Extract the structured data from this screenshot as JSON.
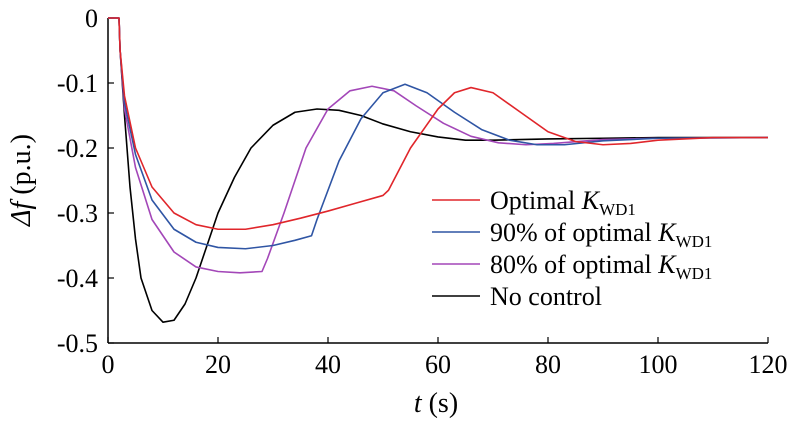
{
  "chart_data": {
    "type": "line",
    "title": "",
    "xlabel": {
      "symbol": "t",
      "unit": " (s)"
    },
    "ylabel": {
      "symbol": "Δf",
      "unit": " (p.u.)"
    },
    "xlim": [
      0,
      120
    ],
    "ylim": [
      -0.5,
      0
    ],
    "xticks": [
      0,
      20,
      40,
      60,
      80,
      100,
      120
    ],
    "xtick_labels": [
      "0",
      "20",
      "40",
      "60",
      "80",
      "100",
      "120"
    ],
    "yticks": [
      0,
      -0.1,
      -0.2,
      -0.3,
      -0.4,
      -0.5
    ],
    "ytick_labels": [
      "0",
      "-0.1",
      "-0.2",
      "-0.3",
      "-0.4",
      "-0.5"
    ],
    "grid": false,
    "legend_position": "right",
    "series": [
      {
        "name": "Optimal K_WD1",
        "legend": {
          "prefix": "Optimal ",
          "k": "K",
          "sub": "WD1"
        },
        "color": "#e0262b",
        "points": [
          [
            0,
            0
          ],
          [
            2,
            0
          ],
          [
            2.2,
            -0.05
          ],
          [
            3,
            -0.12
          ],
          [
            5,
            -0.2
          ],
          [
            8,
            -0.26
          ],
          [
            12,
            -0.3
          ],
          [
            16,
            -0.318
          ],
          [
            20,
            -0.325
          ],
          [
            25,
            -0.325
          ],
          [
            30,
            -0.318
          ],
          [
            35,
            -0.308
          ],
          [
            40,
            -0.297
          ],
          [
            45,
            -0.285
          ],
          [
            50,
            -0.273
          ],
          [
            51,
            -0.265
          ],
          [
            55,
            -0.2
          ],
          [
            60,
            -0.14
          ],
          [
            63,
            -0.115
          ],
          [
            66,
            -0.107
          ],
          [
            70,
            -0.115
          ],
          [
            75,
            -0.145
          ],
          [
            80,
            -0.175
          ],
          [
            85,
            -0.19
          ],
          [
            90,
            -0.195
          ],
          [
            95,
            -0.193
          ],
          [
            100,
            -0.188
          ],
          [
            110,
            -0.184
          ],
          [
            120,
            -0.184
          ]
        ]
      },
      {
        "name": "90% of optimal K_WD1",
        "legend": {
          "prefix": "90% of optimal ",
          "k": "K",
          "sub": "WD1"
        },
        "color": "#2f55a4",
        "points": [
          [
            0,
            0
          ],
          [
            2,
            0
          ],
          [
            2.2,
            -0.05
          ],
          [
            3,
            -0.13
          ],
          [
            5,
            -0.21
          ],
          [
            8,
            -0.28
          ],
          [
            12,
            -0.325
          ],
          [
            16,
            -0.345
          ],
          [
            20,
            -0.353
          ],
          [
            25,
            -0.355
          ],
          [
            30,
            -0.35
          ],
          [
            34,
            -0.342
          ],
          [
            37,
            -0.335
          ],
          [
            38,
            -0.31
          ],
          [
            42,
            -0.22
          ],
          [
            46,
            -0.155
          ],
          [
            50,
            -0.115
          ],
          [
            54,
            -0.102
          ],
          [
            58,
            -0.115
          ],
          [
            63,
            -0.145
          ],
          [
            68,
            -0.172
          ],
          [
            73,
            -0.188
          ],
          [
            78,
            -0.195
          ],
          [
            83,
            -0.195
          ],
          [
            90,
            -0.189
          ],
          [
            100,
            -0.185
          ],
          [
            120,
            -0.184
          ]
        ]
      },
      {
        "name": "80% of optimal K_WD1",
        "legend": {
          "prefix": "80% of optimal ",
          "k": "K",
          "sub": "WD1"
        },
        "color": "#a347b8",
        "points": [
          [
            0,
            0
          ],
          [
            2,
            0
          ],
          [
            2.2,
            -0.05
          ],
          [
            3,
            -0.14
          ],
          [
            5,
            -0.23
          ],
          [
            8,
            -0.31
          ],
          [
            12,
            -0.36
          ],
          [
            16,
            -0.383
          ],
          [
            20,
            -0.39
          ],
          [
            24,
            -0.392
          ],
          [
            28,
            -0.39
          ],
          [
            29,
            -0.37
          ],
          [
            32,
            -0.3
          ],
          [
            36,
            -0.2
          ],
          [
            40,
            -0.14
          ],
          [
            44,
            -0.112
          ],
          [
            48,
            -0.105
          ],
          [
            52,
            -0.112
          ],
          [
            56,
            -0.135
          ],
          [
            61,
            -0.162
          ],
          [
            66,
            -0.182
          ],
          [
            71,
            -0.192
          ],
          [
            76,
            -0.195
          ],
          [
            81,
            -0.193
          ],
          [
            90,
            -0.187
          ],
          [
            100,
            -0.185
          ],
          [
            120,
            -0.184
          ]
        ]
      },
      {
        "name": "No control",
        "legend": {
          "prefix": "No control",
          "k": "",
          "sub": ""
        },
        "color": "#000000",
        "points": [
          [
            0,
            0
          ],
          [
            2,
            0
          ],
          [
            2.2,
            -0.05
          ],
          [
            3,
            -0.15
          ],
          [
            4,
            -0.26
          ],
          [
            5,
            -0.34
          ],
          [
            6,
            -0.4
          ],
          [
            8,
            -0.45
          ],
          [
            10,
            -0.468
          ],
          [
            12,
            -0.465
          ],
          [
            14,
            -0.44
          ],
          [
            16,
            -0.4
          ],
          [
            18,
            -0.35
          ],
          [
            20,
            -0.3
          ],
          [
            23,
            -0.245
          ],
          [
            26,
            -0.2
          ],
          [
            30,
            -0.165
          ],
          [
            34,
            -0.145
          ],
          [
            38,
            -0.14
          ],
          [
            42,
            -0.142
          ],
          [
            46,
            -0.15
          ],
          [
            50,
            -0.163
          ],
          [
            55,
            -0.175
          ],
          [
            60,
            -0.183
          ],
          [
            65,
            -0.188
          ],
          [
            70,
            -0.188
          ],
          [
            80,
            -0.186
          ],
          [
            90,
            -0.185
          ],
          [
            100,
            -0.184
          ],
          [
            120,
            -0.184
          ]
        ]
      }
    ]
  }
}
